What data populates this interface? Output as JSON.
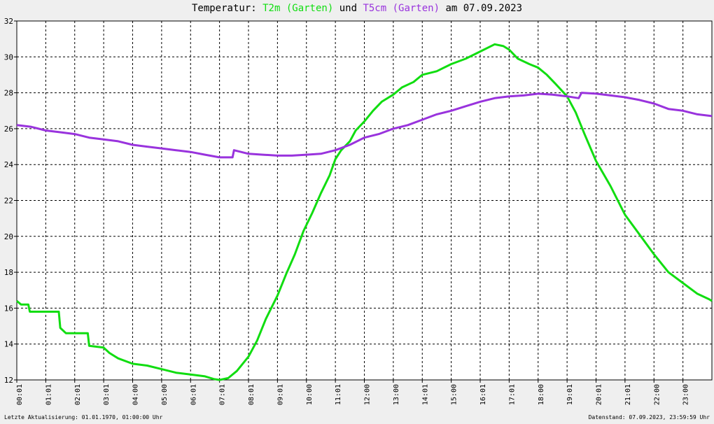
{
  "title": {
    "prefix": "Temperatur: ",
    "series1": "T2m (Garten)",
    "joiner": " und ",
    "series2": "T5cm (Garten)",
    "suffix": " am 07.09.2023"
  },
  "footer": {
    "left": "Letzte Aktualisierung: 01.01.1970, 01:00:00 Uhr",
    "right": "Datenstand: 07.09.2023, 23:59:59 Uhr"
  },
  "chart_data": {
    "type": "line",
    "title": "Temperatur: T2m (Garten) und T5cm (Garten) am 07.09.2023",
    "xlabel": "",
    "ylabel": "",
    "xlim": [
      0,
      24
    ],
    "ylim": [
      12,
      32
    ],
    "x_ticks": [
      "00:01",
      "01:01",
      "02:01",
      "03:01",
      "04:00",
      "05:00",
      "06:01",
      "07:01",
      "08:01",
      "09:01",
      "10:00",
      "11:01",
      "12:00",
      "13:00",
      "14:01",
      "15:00",
      "16:01",
      "17:01",
      "18:00",
      "19:01",
      "20:01",
      "21:01",
      "22:00",
      "23:00"
    ],
    "y_ticks": [
      12,
      14,
      16,
      18,
      20,
      22,
      24,
      26,
      28,
      30,
      32
    ],
    "grid": true,
    "legend": "in title",
    "series": [
      {
        "name": "T2m (Garten)",
        "color": "#11dd11",
        "points": [
          [
            0.0,
            16.4
          ],
          [
            0.15,
            16.2
          ],
          [
            0.4,
            16.2
          ],
          [
            0.45,
            15.8
          ],
          [
            1.0,
            15.8
          ],
          [
            1.45,
            15.8
          ],
          [
            1.5,
            14.9
          ],
          [
            1.7,
            14.6
          ],
          [
            2.0,
            14.6
          ],
          [
            2.45,
            14.6
          ],
          [
            2.5,
            13.9
          ],
          [
            3.0,
            13.8
          ],
          [
            3.2,
            13.5
          ],
          [
            3.5,
            13.2
          ],
          [
            4.0,
            12.9
          ],
          [
            4.5,
            12.8
          ],
          [
            5.0,
            12.6
          ],
          [
            5.5,
            12.4
          ],
          [
            6.0,
            12.3
          ],
          [
            6.5,
            12.2
          ],
          [
            6.8,
            12.05
          ],
          [
            7.0,
            12.0
          ],
          [
            7.3,
            12.1
          ],
          [
            7.6,
            12.5
          ],
          [
            8.0,
            13.3
          ],
          [
            8.3,
            14.2
          ],
          [
            8.6,
            15.4
          ],
          [
            9.0,
            16.7
          ],
          [
            9.3,
            17.9
          ],
          [
            9.6,
            19.0
          ],
          [
            9.9,
            20.3
          ],
          [
            10.2,
            21.3
          ],
          [
            10.5,
            22.4
          ],
          [
            10.8,
            23.4
          ],
          [
            11.0,
            24.3
          ],
          [
            11.2,
            24.8
          ],
          [
            11.5,
            25.3
          ],
          [
            11.7,
            25.9
          ],
          [
            12.0,
            26.4
          ],
          [
            12.3,
            27.0
          ],
          [
            12.6,
            27.5
          ],
          [
            13.0,
            27.9
          ],
          [
            13.3,
            28.3
          ],
          [
            13.7,
            28.6
          ],
          [
            14.0,
            29.0
          ],
          [
            14.5,
            29.2
          ],
          [
            15.0,
            29.6
          ],
          [
            15.5,
            29.9
          ],
          [
            16.0,
            30.3
          ],
          [
            16.5,
            30.7
          ],
          [
            16.8,
            30.6
          ],
          [
            17.0,
            30.4
          ],
          [
            17.3,
            29.9
          ],
          [
            17.7,
            29.6
          ],
          [
            18.0,
            29.4
          ],
          [
            18.3,
            29.0
          ],
          [
            18.6,
            28.5
          ],
          [
            19.0,
            27.8
          ],
          [
            19.3,
            26.9
          ],
          [
            19.6,
            25.7
          ],
          [
            20.0,
            24.2
          ],
          [
            20.5,
            22.8
          ],
          [
            21.0,
            21.2
          ],
          [
            21.5,
            20.1
          ],
          [
            22.0,
            19.0
          ],
          [
            22.5,
            18.0
          ],
          [
            23.0,
            17.4
          ],
          [
            23.5,
            16.8
          ],
          [
            23.9,
            16.5
          ],
          [
            24.0,
            16.4
          ]
        ]
      },
      {
        "name": "T5cm (Garten)",
        "color": "#9933dd",
        "points": [
          [
            0.0,
            26.2
          ],
          [
            0.5,
            26.1
          ],
          [
            1.0,
            25.9
          ],
          [
            1.5,
            25.8
          ],
          [
            2.0,
            25.7
          ],
          [
            2.5,
            25.5
          ],
          [
            3.0,
            25.4
          ],
          [
            3.5,
            25.3
          ],
          [
            4.0,
            25.1
          ],
          [
            4.5,
            25.0
          ],
          [
            5.0,
            24.9
          ],
          [
            5.5,
            24.8
          ],
          [
            6.0,
            24.7
          ],
          [
            6.5,
            24.55
          ],
          [
            7.0,
            24.4
          ],
          [
            7.45,
            24.4
          ],
          [
            7.5,
            24.8
          ],
          [
            8.0,
            24.6
          ],
          [
            8.5,
            24.55
          ],
          [
            9.0,
            24.5
          ],
          [
            9.5,
            24.5
          ],
          [
            10.0,
            24.55
          ],
          [
            10.5,
            24.6
          ],
          [
            11.0,
            24.8
          ],
          [
            11.5,
            25.1
          ],
          [
            12.0,
            25.5
          ],
          [
            12.5,
            25.7
          ],
          [
            13.0,
            26.0
          ],
          [
            13.5,
            26.2
          ],
          [
            14.0,
            26.5
          ],
          [
            14.5,
            26.8
          ],
          [
            15.0,
            27.0
          ],
          [
            15.5,
            27.25
          ],
          [
            16.0,
            27.5
          ],
          [
            16.5,
            27.7
          ],
          [
            17.0,
            27.8
          ],
          [
            17.5,
            27.85
          ],
          [
            18.0,
            27.95
          ],
          [
            18.5,
            27.9
          ],
          [
            19.0,
            27.8
          ],
          [
            19.4,
            27.7
          ],
          [
            19.5,
            28.0
          ],
          [
            20.0,
            27.95
          ],
          [
            20.5,
            27.85
          ],
          [
            21.0,
            27.75
          ],
          [
            21.5,
            27.6
          ],
          [
            22.0,
            27.4
          ],
          [
            22.5,
            27.1
          ],
          [
            23.0,
            27.0
          ],
          [
            23.5,
            26.8
          ],
          [
            24.0,
            26.7
          ]
        ]
      }
    ]
  }
}
